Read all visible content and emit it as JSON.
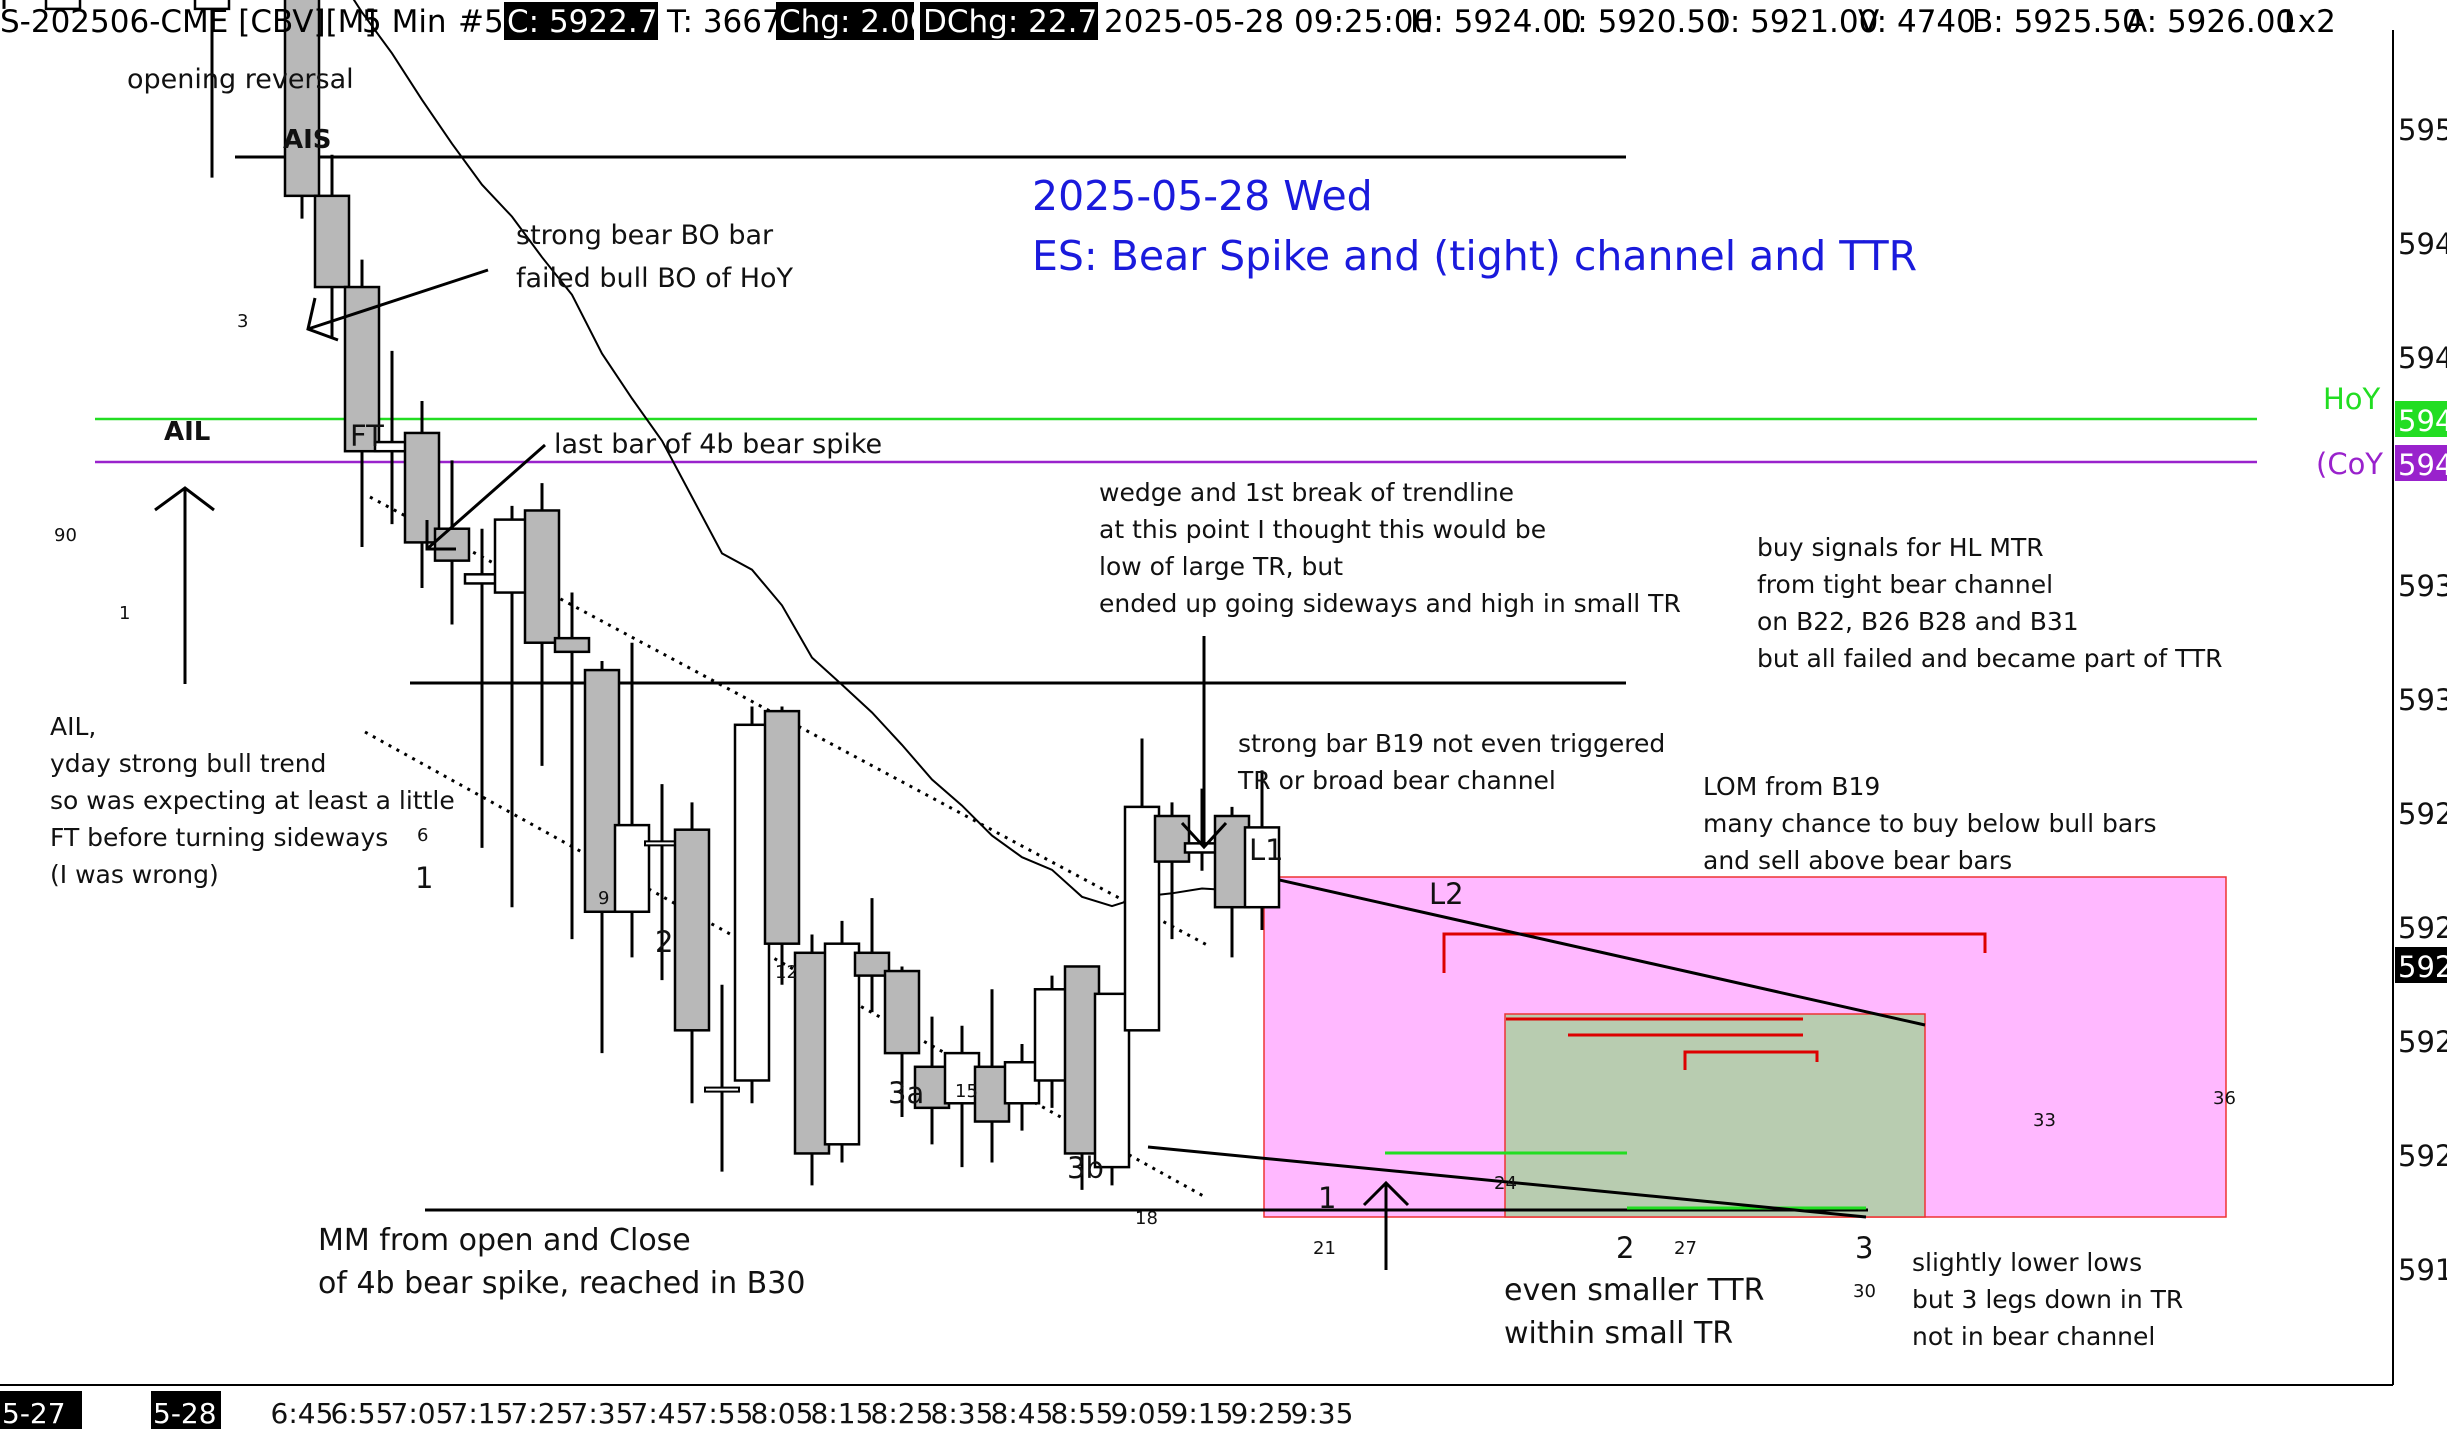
{
  "header": {
    "symbol": "S-202506-CME [CBV][M]",
    "timeframe": "5 Min",
    "chart_num": "#5",
    "close_label": "C: 5922.75",
    "trades": "T: 3667",
    "chg": "Chg: 2.00",
    "dchg": "DChg: 22.75",
    "datetime": "2025-05-28 09:25:00",
    "high": "H: 5924.00",
    "low": "L: 5920.50",
    "open": "O: 5921.00",
    "volume": "V: 4740",
    "bid": "B: 5925.50",
    "ask": "A: 5926.00",
    "scale": "1x2"
  },
  "colors": {
    "bull_body": "#ffffff",
    "bear_body": "#b8b8b8",
    "hoy_line": "#22dd22",
    "coy_line": "#9922cc",
    "tr_box": "#ffb8ff",
    "ttr_box": "#b8ccb0",
    "title": "#1a1adc",
    "red_lines": "#dd0000",
    "green_lines": "#22dd22"
  },
  "chart_data": {
    "type": "candlestick",
    "title_line1": "2025-05-28 Wed",
    "title_line2": "ES: Bear Spike and (tight) channel and TTR",
    "time_labels": [
      "5-27",
      "5-28",
      "6:45",
      "6:55",
      "7:05",
      "7:15",
      "7:25",
      "7:35",
      "7:45",
      "7:55",
      "8:05",
      "8:15",
      "8:25",
      "8:35",
      "8:45",
      "8:55",
      "9:05",
      "9:15",
      "9:25",
      "9:35"
    ],
    "y_axis_labels": [
      "595",
      "594",
      "594",
      "593",
      "593",
      "592",
      "592",
      "592",
      "592",
      "591",
      "591"
    ],
    "price_boxes": [
      {
        "text": "594",
        "color": "#22dd22"
      },
      {
        "text": "594",
        "color": "#9922cc"
      },
      {
        "text": "592",
        "color": "#000000"
      }
    ],
    "hoy_label": "HoY",
    "coy_label": "(CoY",
    "candles": [
      {
        "n": 89,
        "o": 5941.2,
        "h": 5942.7,
        "l": 5940.7,
        "c": 5941.2
      },
      {
        "n": 90,
        "o": 5940.7,
        "h": 5942.7,
        "l": 5940.7,
        "c": 5941.6
      },
      {
        "n": 1,
        "o": 5940.7,
        "h": 5945.3,
        "l": 5937.0,
        "c": 5944.9
      },
      {
        "n": 2,
        "o": 5945.1,
        "h": 5950.6,
        "l": 5942.8,
        "c": 5950.3
      },
      {
        "n": 3,
        "o": 5950.6,
        "h": 5952.1,
        "l": 5947.7,
        "c": 5948.4
      },
      {
        "n": 4,
        "o": 5948.2,
        "h": 5949.5,
        "l": 5936.1,
        "c": 5936.6
      },
      {
        "n": 5,
        "o": 5936.6,
        "h": 5937.5,
        "l": 5933.5,
        "c": 5934.6
      },
      {
        "n": 6,
        "o": 5934.6,
        "h": 5935.2,
        "l": 5928.9,
        "c": 5931.0
      },
      {
        "n": 7,
        "o": 5931.0,
        "h": 5933.2,
        "l": 5929.4,
        "c": 5931.2
      },
      {
        "n": 8,
        "o": 5931.4,
        "h": 5932.1,
        "l": 5928.0,
        "c": 5929.0
      },
      {
        "n": 9,
        "o": 5929.3,
        "h": 5930.8,
        "l": 5927.2,
        "c": 5928.6
      },
      {
        "n": 10,
        "o": 5928.1,
        "h": 5929.3,
        "l": 5922.3,
        "c": 5928.3
      },
      {
        "n": 11,
        "o": 5927.9,
        "h": 5929.8,
        "l": 5921.0,
        "c": 5929.5
      },
      {
        "n": 12,
        "o": 5929.7,
        "h": 5930.3,
        "l": 5924.1,
        "c": 5926.8
      },
      {
        "n": 13,
        "o": 5926.9,
        "h": 5927.9,
        "l": 5920.3,
        "c": 5926.6
      },
      {
        "n": 14,
        "o": 5926.2,
        "h": 5926.4,
        "l": 5917.8,
        "c": 5920.9
      },
      {
        "n": 15,
        "o": 5920.9,
        "h": 5926.8,
        "l": 5919.9,
        "c": 5922.8
      },
      {
        "n": 16,
        "o": 5922.4,
        "h": 5923.7,
        "l": 5919.4,
        "c": 5922.4
      },
      {
        "n": 17,
        "o": 5922.7,
        "h": 5923.3,
        "l": 5916.7,
        "c": 5918.3
      },
      {
        "n": 18,
        "o": 5917.0,
        "h": 5919.3,
        "l": 5915.2,
        "c": 5917.0
      },
      {
        "n": 19,
        "o": 5917.2,
        "h": 5925.4,
        "l": 5916.7,
        "c": 5925.0
      },
      {
        "n": 20,
        "o": 5925.3,
        "h": 5925.4,
        "l": 5919.3,
        "c": 5920.2
      },
      {
        "n": 21,
        "o": 5920.0,
        "h": 5920.4,
        "l": 5914.9,
        "c": 5915.6
      },
      {
        "n": 22,
        "o": 5915.8,
        "h": 5920.7,
        "l": 5915.4,
        "c": 5920.2
      },
      {
        "n": 23,
        "o": 5920.0,
        "h": 5921.2,
        "l": 5918.7,
        "c": 5919.5
      },
      {
        "n": 24,
        "o": 5919.6,
        "h": 5919.7,
        "l": 5916.4,
        "c": 5917.8
      },
      {
        "n": 25,
        "o": 5917.5,
        "h": 5918.6,
        "l": 5915.8,
        "c": 5916.6
      },
      {
        "n": 26,
        "o": 5916.7,
        "h": 5918.4,
        "l": 5915.3,
        "c": 5917.8
      },
      {
        "n": 27,
        "o": 5917.5,
        "h": 5919.2,
        "l": 5915.4,
        "c": 5916.3
      },
      {
        "n": 28,
        "o": 5916.7,
        "h": 5918.0,
        "l": 5916.1,
        "c": 5917.6
      },
      {
        "n": 29,
        "o": 5917.2,
        "h": 5919.5,
        "l": 5916.6,
        "c": 5919.2
      },
      {
        "n": 30,
        "o": 5919.7,
        "h": 5919.7,
        "l": 5914.8,
        "c": 5915.6
      },
      {
        "n": 31,
        "o": 5915.3,
        "h": 5919.1,
        "l": 5914.9,
        "c": 5919.1
      },
      {
        "n": 32,
        "o": 5918.3,
        "h": 5924.7,
        "l": 5918.6,
        "c": 5923.2
      },
      {
        "n": 33,
        "o": 5923.0,
        "h": 5923.3,
        "l": 5920.3,
        "c": 5922.0
      },
      {
        "n": 34,
        "o": 5922.2,
        "h": 5923.6,
        "l": 5921.8,
        "c": 5922.4
      },
      {
        "n": 35,
        "o": 5923.0,
        "h": 5923.2,
        "l": 5919.9,
        "c": 5921.0
      },
      {
        "n": 36,
        "o": 5921.0,
        "h": 5924.0,
        "l": 5920.5,
        "c": 5922.75
      }
    ],
    "bar_number_labels": [
      "90",
      "1",
      "3",
      "6",
      "9",
      "12",
      "15",
      "18",
      "21",
      "24",
      "27",
      "30",
      "33",
      "36"
    ],
    "leg_labels": [
      "1",
      "2",
      "3a",
      "3b",
      "1",
      "2",
      "3",
      "L1",
      "L2",
      "AIS",
      "AIL",
      "FT"
    ],
    "annotations": {
      "opening_reversal": "opening reversal",
      "strong_bear_1": "strong bear BO bar",
      "strong_bear_2": "failed bull BO of HoY",
      "last_bar": "last bar of 4b bear spike",
      "wedge_1": "wedge and 1st break of trendline",
      "wedge_2": "at this point I thought this would be",
      "wedge_3": "low of large TR, but",
      "wedge_4": "ended up going sideways and high in small TR",
      "buy_1": "buy signals for HL MTR",
      "buy_2": "from tight bear channel",
      "buy_3": "on B22, B26 B28 and B31",
      "buy_4": "but all failed and became part of TTR",
      "ail_1": "AIL,",
      "ail_2": "yday strong bull trend",
      "ail_3": "so was expecting at least a little",
      "ail_4": "FT before turning sideways",
      "ail_5": "(I was wrong)",
      "strong_b19_1": "strong bar B19 not even triggered",
      "strong_b19_2": "TR or broad bear channel",
      "lom_1": "LOM from B19",
      "lom_2": "many chance to buy below bull bars",
      "lom_3": "and sell above bear bars",
      "mm_1": "MM from open and Close",
      "mm_2": "of 4b bear spike, reached in B30",
      "ttr_1": "even smaller TTR",
      "ttr_2": "within small TR",
      "lower_1": "slightly lower lows",
      "lower_2": "but 3 legs down in TR",
      "lower_3": "not in bear channel"
    }
  }
}
